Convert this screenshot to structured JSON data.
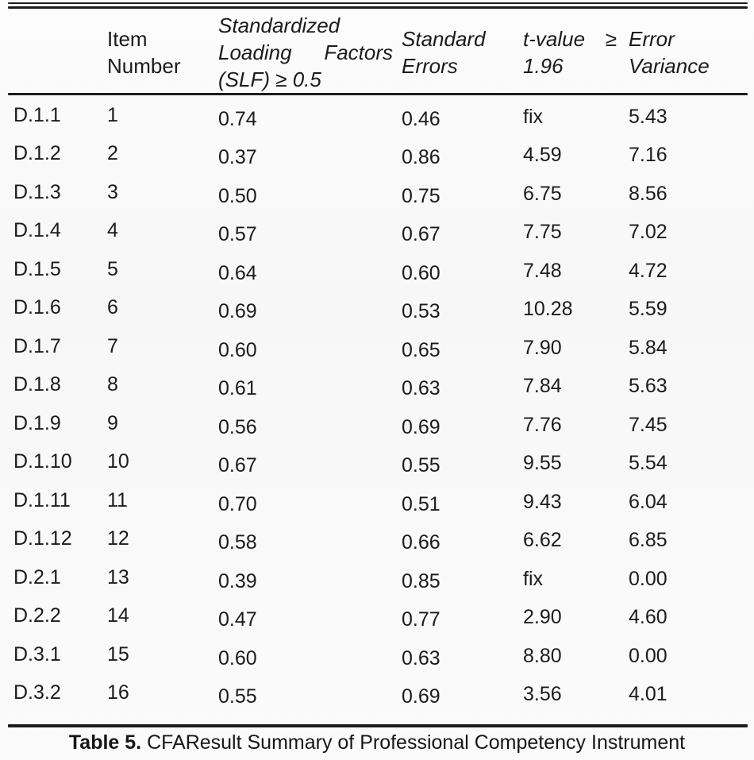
{
  "header": {
    "item": {
      "line1": "Item",
      "line2": "Number"
    },
    "slf": {
      "line1": "Standardized",
      "line2_left": "Loading",
      "line2_right": "Factors",
      "line3": "(SLF) ≥ 0.5"
    },
    "se": {
      "line1": "Standard",
      "line2": "Errors"
    },
    "t": {
      "line1_left": "t-value",
      "line1_right": "≥",
      "line2": "1.96"
    },
    "ev": {
      "line1": "Error",
      "line2": "Variance"
    }
  },
  "rows": [
    {
      "code": "D.1.1",
      "item": "1",
      "slf": "0.74",
      "se": "0.46",
      "t": "fix",
      "ev": "5.43"
    },
    {
      "code": "D.1.2",
      "item": "2",
      "slf": "0.37",
      "se": "0.86",
      "t": "4.59",
      "ev": "7.16"
    },
    {
      "code": "D.1.3",
      "item": "3",
      "slf": "0.50",
      "se": "0.75",
      "t": "6.75",
      "ev": "8.56"
    },
    {
      "code": "D.1.4",
      "item": "4",
      "slf": "0.57",
      "se": "0.67",
      "t": "7.75",
      "ev": "7.02"
    },
    {
      "code": "D.1.5",
      "item": "5",
      "slf": "0.64",
      "se": "0.60",
      "t": "7.48",
      "ev": "4.72"
    },
    {
      "code": "D.1.6",
      "item": "6",
      "slf": "0.69",
      "se": "0.53",
      "t": "10.28",
      "ev": "5.59"
    },
    {
      "code": "D.1.7",
      "item": "7",
      "slf": "0.60",
      "se": "0.65",
      "t": "7.90",
      "ev": "5.84"
    },
    {
      "code": "D.1.8",
      "item": "8",
      "slf": "0.61",
      "se": "0.63",
      "t": "7.84",
      "ev": "5.63"
    },
    {
      "code": "D.1.9",
      "item": "9",
      "slf": "0.56",
      "se": "0.69",
      "t": "7.76",
      "ev": "7.45"
    },
    {
      "code": "D.1.10",
      "item": "10",
      "slf": "0.67",
      "se": "0.55",
      "t": "9.55",
      "ev": "5.54"
    },
    {
      "code": "D.1.11",
      "item": "11",
      "slf": "0.70",
      "se": "0.51",
      "t": "9.43",
      "ev": "6.04"
    },
    {
      "code": "D.1.12",
      "item": "12",
      "slf": "0.58",
      "se": "0.66",
      "t": "6.62",
      "ev": "6.85"
    },
    {
      "code": "D.2.1",
      "item": "13",
      "slf": "0.39",
      "se": "0.85",
      "t": "fix",
      "ev": "0.00"
    },
    {
      "code": "D.2.2",
      "item": "14",
      "slf": "0.47",
      "se": "0.77",
      "t": "2.90",
      "ev": "4.60"
    },
    {
      "code": "D.3.1",
      "item": "15",
      "slf": "0.60",
      "se": "0.63",
      "t": "8.80",
      "ev": "0.00"
    },
    {
      "code": "D.3.2",
      "item": "16",
      "slf": "0.55",
      "se": "0.69",
      "t": "3.56",
      "ev": "4.01"
    }
  ],
  "caption": {
    "label": "Table 5.",
    "text": " CFAResult Summary of Professional Competency Instrument"
  },
  "colors": {
    "text": "#1b1b1b",
    "rule": "#1c1c1c",
    "background": "#fafafa"
  }
}
